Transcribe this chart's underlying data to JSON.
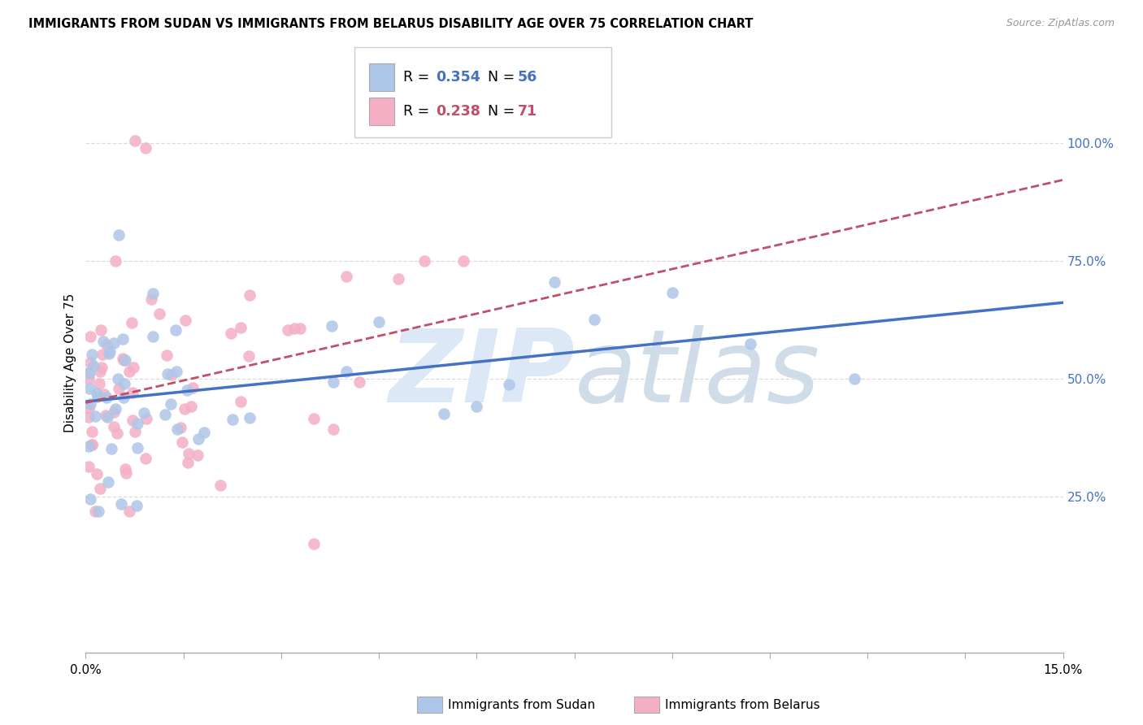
{
  "title": "IMMIGRANTS FROM SUDAN VS IMMIGRANTS FROM BELARUS DISABILITY AGE OVER 75 CORRELATION CHART",
  "source": "Source: ZipAtlas.com",
  "ylabel": "Disability Age Over 75",
  "xlim": [
    0.0,
    15.0
  ],
  "ylim": [
    -8,
    115
  ],
  "ytick_vals": [
    0,
    25,
    50,
    75,
    100
  ],
  "ytick_labels": [
    "",
    "25.0%",
    "50.0%",
    "75.0%",
    "100.0%"
  ],
  "n_sudan": 56,
  "n_belarus": 71,
  "r_sudan": 0.354,
  "r_belarus": 0.238,
  "color_sudan_fill": "#aec6e8",
  "color_belarus_fill": "#f4afc3",
  "color_sudan_line": "#4472c4",
  "color_belarus_line": "#c0506a",
  "color_grid": "#dddddd",
  "color_axis": "#aaaaaa",
  "color_right_axis": "#4472c4",
  "watermark_text": "ZIPatlas",
  "watermark_color": "#dce8f5",
  "legend1_label": "Immigrants from Sudan",
  "legend2_label": "Immigrants from Belarus",
  "seed_sudan": 77,
  "seed_belarus": 99
}
